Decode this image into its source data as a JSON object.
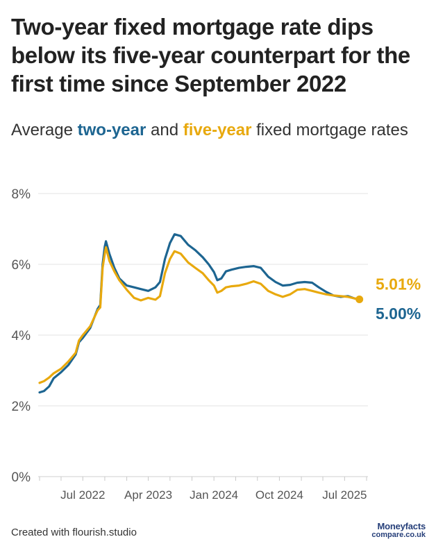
{
  "title": "Two-year fixed mortgage rate dips below its five-year counterpart for the first time since September 2022",
  "subtitle": {
    "prefix": "Average ",
    "two_year": "two-year",
    "middle": " and ",
    "five_year": "five-year",
    "suffix": " fixed mortgage rates"
  },
  "footer": {
    "credit": "Created with flourish.studio",
    "logo_top": "Moneyfacts",
    "logo_bottom": "compare.co.uk"
  },
  "colors": {
    "two_year": "#1d6591",
    "five_year": "#e8a90e",
    "grid": "#e3e3e3",
    "axis_text": "#555555"
  },
  "chart_data": {
    "type": "line",
    "title": "Two-year fixed mortgage rate dips below its five-year counterpart for the first time since September 2022",
    "subtitle": "Average two-year and five-year fixed mortgage rates",
    "xlabel": "",
    "ylabel": "",
    "ylim": [
      0,
      8
    ],
    "yticks": [
      0,
      2,
      4,
      6,
      8
    ],
    "ytick_labels": [
      "0%",
      "2%",
      "4%",
      "6%",
      "8%"
    ],
    "x_range": [
      "2022-01-01",
      "2025-10-01"
    ],
    "xtick_labels": [
      {
        "date": "2022-07-01",
        "label": "Jul 2022"
      },
      {
        "date": "2023-04-01",
        "label": "Apr 2023"
      },
      {
        "date": "2024-01-01",
        "label": "Jan 2024"
      },
      {
        "date": "2024-10-01",
        "label": "Oct 2024"
      },
      {
        "date": "2025-07-01",
        "label": "Jul 2025"
      }
    ],
    "grid": true,
    "series": [
      {
        "name": "two-year",
        "color": "#1d6591",
        "end_label": "5.00%",
        "points": [
          [
            "2022-01-01",
            2.38
          ],
          [
            "2022-01-20",
            2.42
          ],
          [
            "2022-02-10",
            2.55
          ],
          [
            "2022-03-01",
            2.78
          ],
          [
            "2022-04-01",
            2.95
          ],
          [
            "2022-05-01",
            3.15
          ],
          [
            "2022-06-01",
            3.45
          ],
          [
            "2022-06-15",
            3.8
          ],
          [
            "2022-07-01",
            3.92
          ],
          [
            "2022-08-01",
            4.2
          ],
          [
            "2022-09-01",
            4.74
          ],
          [
            "2022-09-12",
            4.85
          ],
          [
            "2022-09-22",
            6.0
          ],
          [
            "2022-10-01",
            6.5
          ],
          [
            "2022-10-06",
            6.65
          ],
          [
            "2022-10-20",
            6.3
          ],
          [
            "2022-11-10",
            5.9
          ],
          [
            "2022-12-01",
            5.6
          ],
          [
            "2023-01-01",
            5.4
          ],
          [
            "2023-02-01",
            5.35
          ],
          [
            "2023-03-01",
            5.3
          ],
          [
            "2023-04-01",
            5.25
          ],
          [
            "2023-05-01",
            5.35
          ],
          [
            "2023-05-20",
            5.5
          ],
          [
            "2023-06-10",
            6.15
          ],
          [
            "2023-07-01",
            6.6
          ],
          [
            "2023-07-20",
            6.85
          ],
          [
            "2023-08-15",
            6.8
          ],
          [
            "2023-09-15",
            6.55
          ],
          [
            "2023-10-15",
            6.4
          ],
          [
            "2023-11-15",
            6.2
          ],
          [
            "2023-12-10",
            6.0
          ],
          [
            "2024-01-01",
            5.78
          ],
          [
            "2024-01-15",
            5.55
          ],
          [
            "2024-02-01",
            5.6
          ],
          [
            "2024-02-20",
            5.8
          ],
          [
            "2024-03-15",
            5.85
          ],
          [
            "2024-04-15",
            5.9
          ],
          [
            "2024-05-15",
            5.93
          ],
          [
            "2024-06-15",
            5.95
          ],
          [
            "2024-07-15",
            5.9
          ],
          [
            "2024-08-15",
            5.65
          ],
          [
            "2024-09-15",
            5.5
          ],
          [
            "2024-10-15",
            5.4
          ],
          [
            "2024-11-15",
            5.42
          ],
          [
            "2024-12-15",
            5.48
          ],
          [
            "2025-01-15",
            5.5
          ],
          [
            "2025-02-15",
            5.48
          ],
          [
            "2025-03-15",
            5.35
          ],
          [
            "2025-04-15",
            5.22
          ],
          [
            "2025-05-15",
            5.12
          ],
          [
            "2025-06-15",
            5.08
          ],
          [
            "2025-07-15",
            5.1
          ],
          [
            "2025-08-10",
            5.04
          ],
          [
            "2025-09-01",
            5.0
          ]
        ]
      },
      {
        "name": "five-year",
        "color": "#e8a90e",
        "end_label": "5.01%",
        "points": [
          [
            "2022-01-01",
            2.65
          ],
          [
            "2022-01-20",
            2.7
          ],
          [
            "2022-02-10",
            2.8
          ],
          [
            "2022-03-01",
            2.92
          ],
          [
            "2022-04-01",
            3.05
          ],
          [
            "2022-05-01",
            3.25
          ],
          [
            "2022-06-01",
            3.5
          ],
          [
            "2022-06-15",
            3.85
          ],
          [
            "2022-07-01",
            4.0
          ],
          [
            "2022-08-01",
            4.25
          ],
          [
            "2022-09-01",
            4.7
          ],
          [
            "2022-09-12",
            4.78
          ],
          [
            "2022-09-22",
            5.9
          ],
          [
            "2022-10-01",
            6.3
          ],
          [
            "2022-10-06",
            6.48
          ],
          [
            "2022-10-20",
            6.1
          ],
          [
            "2022-11-10",
            5.8
          ],
          [
            "2022-12-01",
            5.55
          ],
          [
            "2023-01-01",
            5.28
          ],
          [
            "2023-02-01",
            5.05
          ],
          [
            "2023-03-01",
            4.98
          ],
          [
            "2023-04-01",
            5.05
          ],
          [
            "2023-05-01",
            5.0
          ],
          [
            "2023-05-20",
            5.1
          ],
          [
            "2023-06-10",
            5.75
          ],
          [
            "2023-07-01",
            6.15
          ],
          [
            "2023-07-20",
            6.37
          ],
          [
            "2023-08-15",
            6.3
          ],
          [
            "2023-09-15",
            6.05
          ],
          [
            "2023-10-15",
            5.9
          ],
          [
            "2023-11-15",
            5.75
          ],
          [
            "2023-12-10",
            5.55
          ],
          [
            "2024-01-01",
            5.4
          ],
          [
            "2024-01-15",
            5.2
          ],
          [
            "2024-02-01",
            5.25
          ],
          [
            "2024-02-20",
            5.35
          ],
          [
            "2024-03-15",
            5.38
          ],
          [
            "2024-04-15",
            5.4
          ],
          [
            "2024-05-15",
            5.45
          ],
          [
            "2024-06-15",
            5.52
          ],
          [
            "2024-07-15",
            5.45
          ],
          [
            "2024-08-15",
            5.25
          ],
          [
            "2024-09-15",
            5.15
          ],
          [
            "2024-10-15",
            5.08
          ],
          [
            "2024-11-15",
            5.15
          ],
          [
            "2024-12-15",
            5.28
          ],
          [
            "2025-01-15",
            5.3
          ],
          [
            "2025-02-15",
            5.25
          ],
          [
            "2025-03-15",
            5.2
          ],
          [
            "2025-04-15",
            5.15
          ],
          [
            "2025-05-15",
            5.12
          ],
          [
            "2025-06-15",
            5.1
          ],
          [
            "2025-07-15",
            5.08
          ],
          [
            "2025-08-10",
            5.04
          ],
          [
            "2025-09-01",
            5.01
          ]
        ]
      }
    ]
  }
}
